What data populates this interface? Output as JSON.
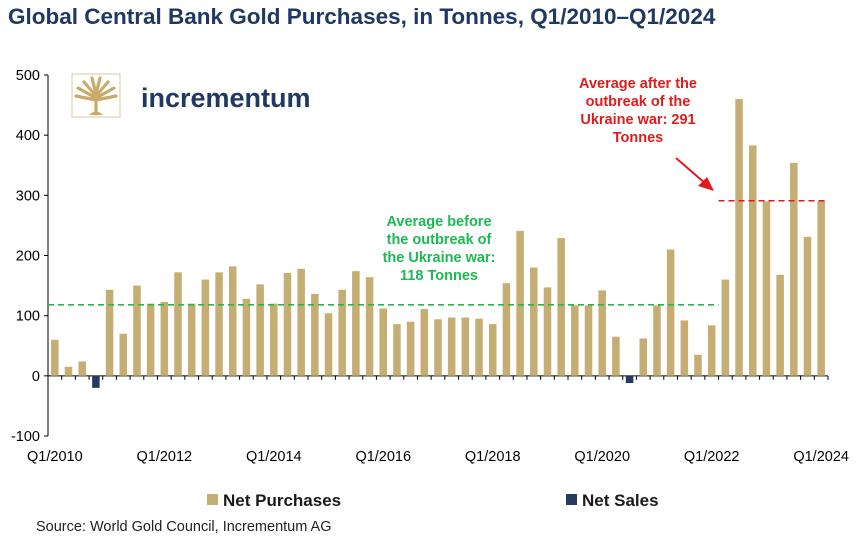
{
  "title": "Global Central Bank Gold Purchases, in Tonnes, Q1/2010–Q1/2024",
  "source": "Source: World Gold Council, Incrementum AG",
  "logo": {
    "text": "incrementum",
    "icon": "tree-logo-icon",
    "color": "#C9AA6A",
    "text_color": "#1F3864"
  },
  "colors": {
    "net_purchases": "#C5AE73",
    "net_sales": "#243A5E",
    "avg_before": "#2DB54A",
    "avg_after": "#E01B1B",
    "title": "#1F3864"
  },
  "chart_data": {
    "type": "bar",
    "title": "Global Central Bank Gold Purchases, in Tonnes, Q1/2010–Q1/2024",
    "ylim": [
      -100,
      500
    ],
    "yticks": [
      -100,
      0,
      100,
      200,
      300,
      400,
      500
    ],
    "x_tick_labels": [
      "Q1/2010",
      "Q1/2012",
      "Q1/2014",
      "Q1/2016",
      "Q1/2018",
      "Q1/2020",
      "Q1/2022",
      "Q1/2024"
    ],
    "categories": [
      "Q1/2010",
      "Q2/2010",
      "Q3/2010",
      "Q4/2010",
      "Q1/2011",
      "Q2/2011",
      "Q3/2011",
      "Q4/2011",
      "Q1/2012",
      "Q2/2012",
      "Q3/2012",
      "Q4/2012",
      "Q1/2013",
      "Q2/2013",
      "Q3/2013",
      "Q4/2013",
      "Q1/2014",
      "Q2/2014",
      "Q3/2014",
      "Q4/2014",
      "Q1/2015",
      "Q2/2015",
      "Q3/2015",
      "Q4/2015",
      "Q1/2016",
      "Q2/2016",
      "Q3/2016",
      "Q4/2016",
      "Q1/2017",
      "Q2/2017",
      "Q3/2017",
      "Q4/2017",
      "Q1/2018",
      "Q2/2018",
      "Q3/2018",
      "Q4/2018",
      "Q1/2019",
      "Q2/2019",
      "Q3/2019",
      "Q4/2019",
      "Q1/2020",
      "Q2/2020",
      "Q3/2020",
      "Q4/2020",
      "Q1/2021",
      "Q2/2021",
      "Q3/2021",
      "Q4/2021",
      "Q1/2022",
      "Q2/2022",
      "Q3/2022",
      "Q4/2022",
      "Q1/2023",
      "Q2/2023",
      "Q3/2023",
      "Q4/2023",
      "Q1/2024"
    ],
    "series": [
      {
        "name": "Net Purchases",
        "values": [
          60,
          15,
          24,
          0,
          143,
          70,
          150,
          120,
          123,
          172,
          120,
          160,
          172,
          182,
          128,
          152,
          120,
          171,
          178,
          136,
          104,
          143,
          174,
          164,
          112,
          86,
          90,
          111,
          94,
          97,
          97,
          95,
          86,
          154,
          241,
          180,
          147,
          229,
          117,
          117,
          142,
          65,
          0,
          62,
          117,
          210,
          92,
          35,
          84,
          160,
          460,
          383,
          290,
          168,
          354,
          231,
          290
        ]
      },
      {
        "name": "Net Sales",
        "values": [
          0,
          0,
          0,
          -20,
          0,
          0,
          0,
          0,
          0,
          0,
          0,
          0,
          0,
          0,
          0,
          0,
          0,
          0,
          0,
          0,
          0,
          0,
          0,
          0,
          0,
          0,
          0,
          0,
          0,
          0,
          0,
          0,
          0,
          0,
          0,
          0,
          0,
          0,
          0,
          0,
          0,
          0,
          -12,
          0,
          0,
          0,
          0,
          0,
          0,
          0,
          0,
          0,
          0,
          0,
          0,
          0,
          0
        ]
      }
    ],
    "reference_lines": [
      {
        "value": 118,
        "start_index": 0,
        "end_index": 48,
        "style": "dashed",
        "color": "#2DB54A"
      },
      {
        "value": 291,
        "start_index": 49,
        "end_index": 56,
        "style": "dashed",
        "color": "#E01B1B"
      }
    ],
    "annotations": [
      {
        "lines": [
          "Average before",
          "the outbreak of",
          "the Ukraine war:",
          "118 Tonnes"
        ],
        "color": "#1DB954"
      },
      {
        "lines": [
          "Average after the",
          "outbreak of the",
          "Ukraine war: 291",
          "Tonnes"
        ],
        "color": "#E01B1B"
      }
    ],
    "legend": {
      "placement": "bottom",
      "entries": [
        "Net Purchases",
        "Net Sales"
      ]
    },
    "grid": false
  }
}
